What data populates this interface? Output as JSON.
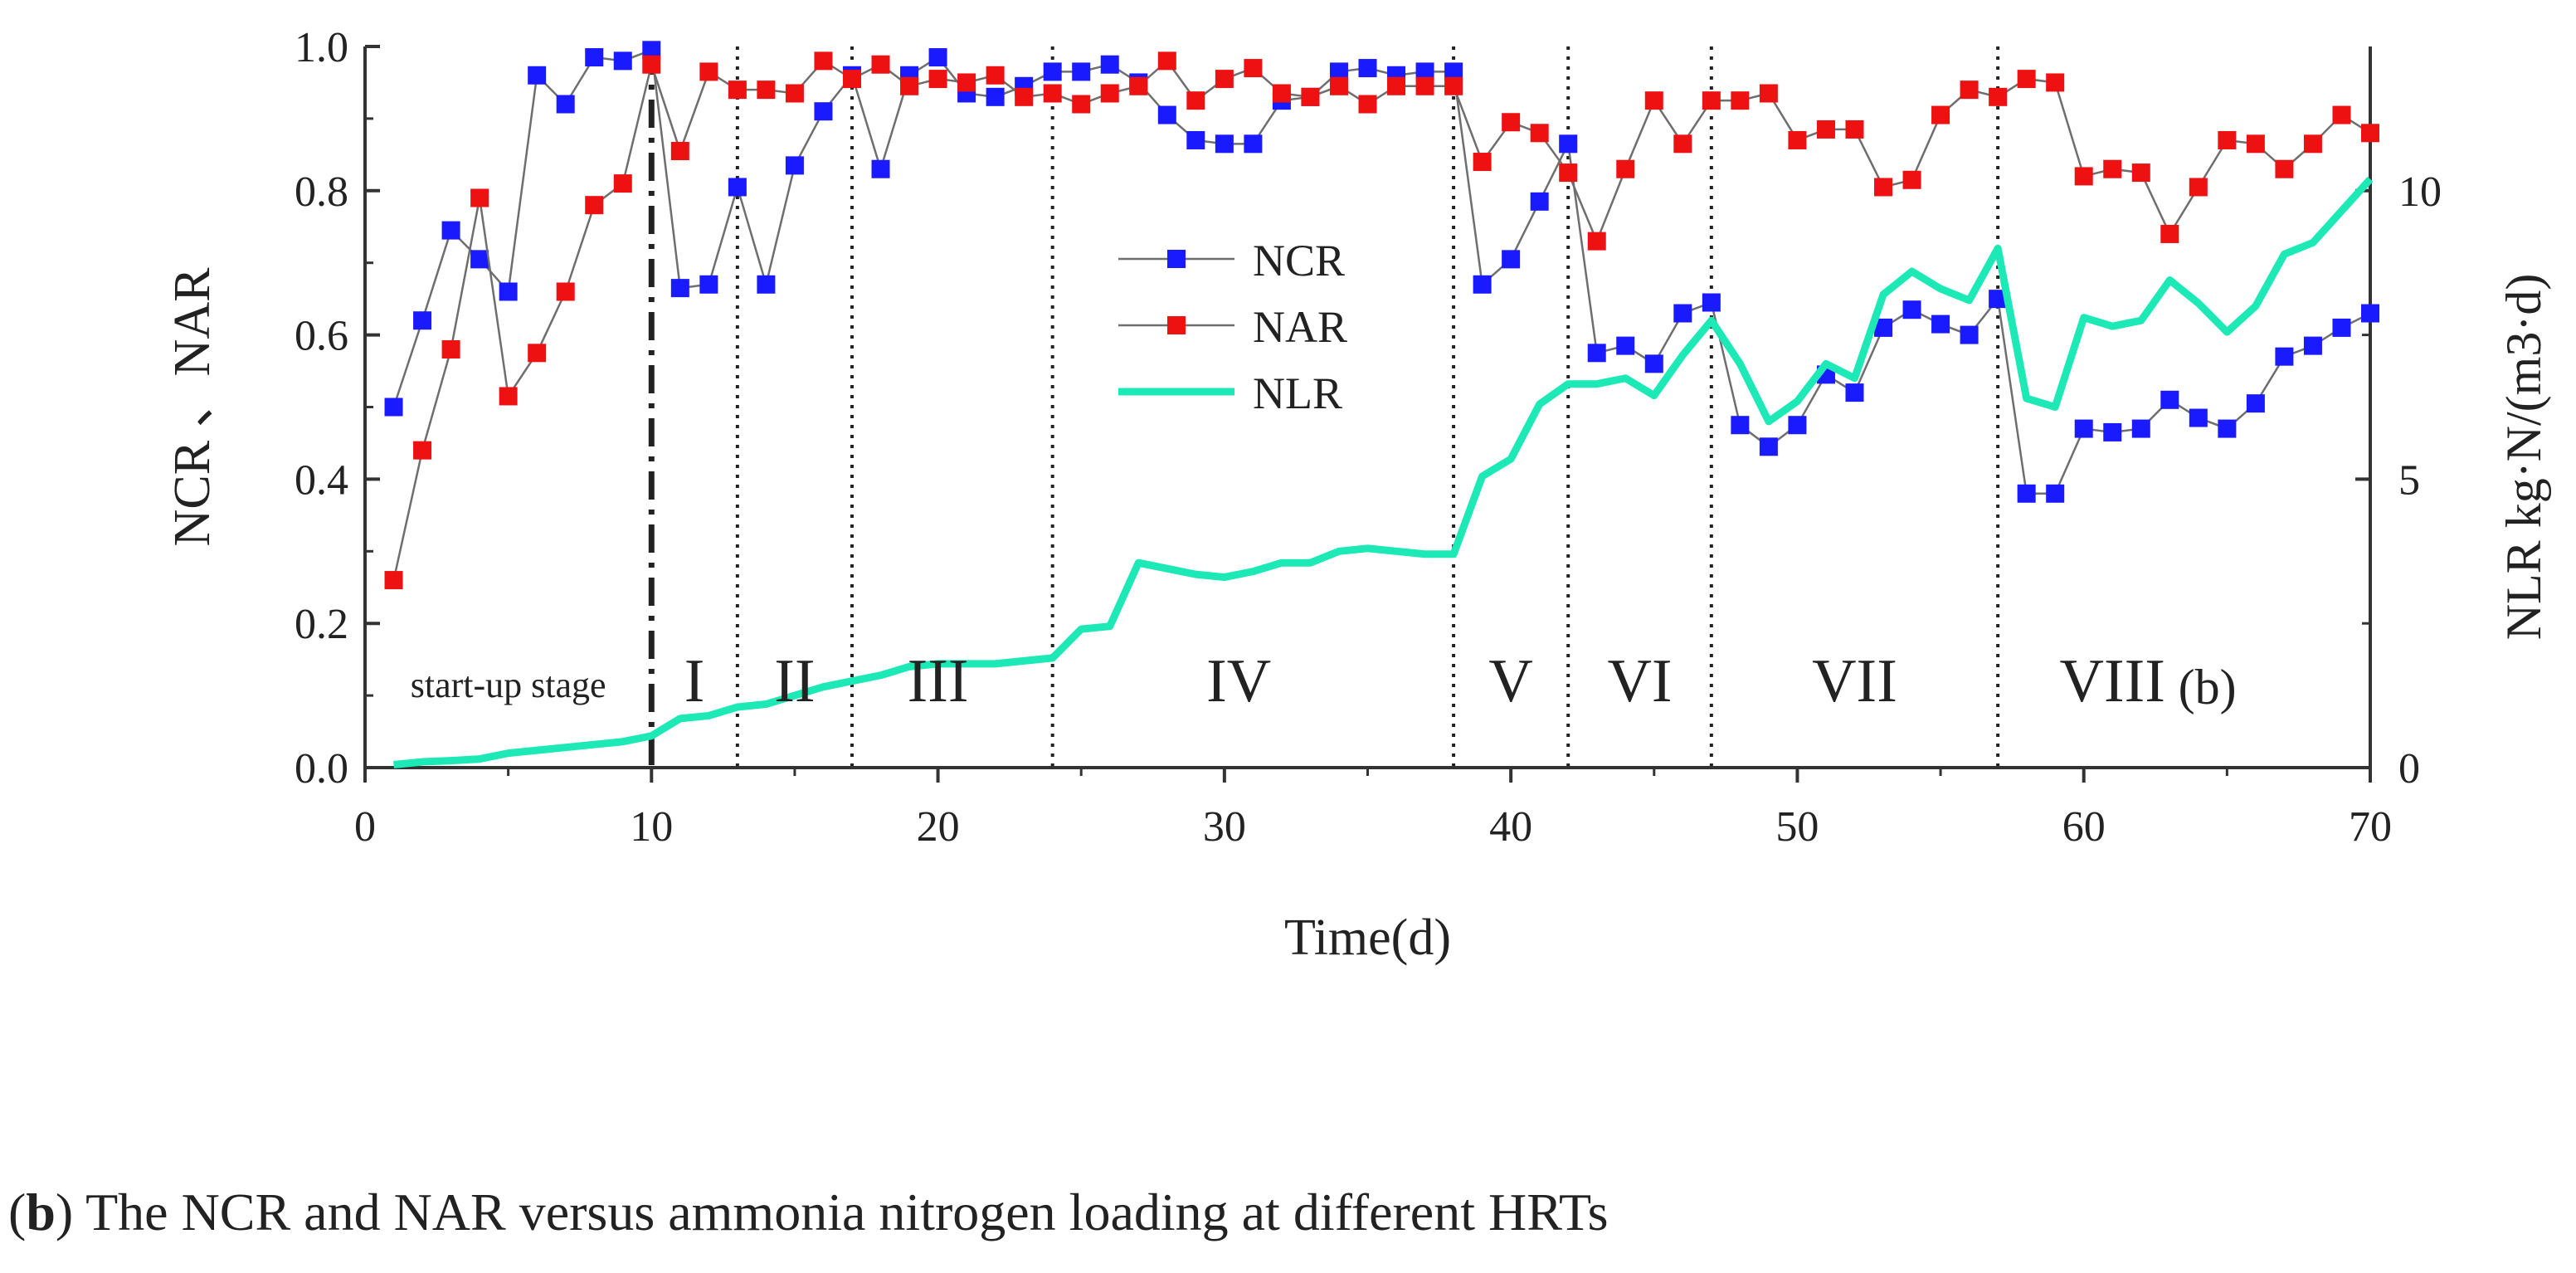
{
  "chart_data": {
    "type": "line",
    "xlabel": "Time(d)",
    "ylabel": "NCR 、NAR",
    "y2label": "NLR  kg·N/(m3·d)",
    "xlim": [
      0,
      70
    ],
    "ylim": [
      0,
      1
    ],
    "y2lim": [
      0,
      12.5
    ],
    "x_ticks": [
      0,
      10,
      20,
      30,
      40,
      50,
      60,
      70
    ],
    "y_ticks": [
      0.0,
      0.2,
      0.4,
      0.6,
      0.8,
      1.0
    ],
    "y_tick_labels": [
      "0.0",
      "0.2",
      "0.4",
      "0.6",
      "0.8",
      "1.0"
    ],
    "y2_ticks": [
      0,
      5,
      10
    ],
    "y2_minor_ticks": [
      2.5,
      7.5
    ],
    "legend": "center",
    "panel_label": "(b)",
    "startup_divider": 10,
    "stage_dividers": [
      13,
      17,
      24,
      38,
      42,
      47,
      57,
      70
    ],
    "stages": [
      {
        "label": "start-up stage",
        "x": 5
      },
      {
        "label": "I",
        "x": 11.5
      },
      {
        "label": "II",
        "x": 15
      },
      {
        "label": "III",
        "x": 20
      },
      {
        "label": "IV",
        "x": 30.5
      },
      {
        "label": "V",
        "x": 40
      },
      {
        "label": "VI",
        "x": 44.5
      },
      {
        "label": "VII",
        "x": 52
      },
      {
        "label": "VIII",
        "x": 61
      }
    ],
    "series": [
      {
        "name": "NCR",
        "axis": "left",
        "color": "#1a1aff",
        "marker": "square",
        "x": [
          1,
          2,
          3,
          4,
          5,
          6,
          7,
          8,
          9,
          10,
          11,
          12,
          13,
          14,
          15,
          16,
          17,
          18,
          19,
          20,
          21,
          22,
          23,
          24,
          25,
          26,
          27,
          28,
          29,
          30,
          31,
          32,
          33,
          34,
          35,
          36,
          37,
          38,
          39,
          40,
          41,
          42,
          43,
          44,
          45,
          46,
          47,
          48,
          49,
          50,
          51,
          52,
          53,
          54,
          55,
          56,
          57,
          58,
          59,
          60,
          61,
          62,
          63,
          64,
          65,
          66,
          67,
          68,
          69,
          70
        ],
        "values": [
          0.5,
          0.62,
          0.745,
          0.705,
          0.66,
          0.96,
          0.92,
          0.985,
          0.98,
          0.995,
          0.665,
          0.67,
          0.805,
          0.67,
          0.835,
          0.91,
          0.96,
          0.83,
          0.96,
          0.985,
          0.935,
          0.93,
          0.945,
          0.965,
          0.965,
          0.975,
          0.95,
          0.905,
          0.87,
          0.865,
          0.865,
          0.925,
          0.93,
          0.965,
          0.97,
          0.96,
          0.965,
          0.965,
          0.67,
          0.705,
          0.785,
          0.865,
          0.575,
          0.585,
          0.56,
          0.63,
          0.645,
          0.475,
          0.445,
          0.475,
          0.545,
          0.52,
          0.61,
          0.635,
          0.615,
          0.6,
          0.65,
          0.38,
          0.38,
          0.47,
          0.465,
          0.47,
          0.51,
          0.485,
          0.47,
          0.505,
          0.57,
          0.585,
          0.61,
          0.63
        ]
      },
      {
        "name": "NAR",
        "axis": "left",
        "color": "#ee1111",
        "marker": "square",
        "x": [
          1,
          2,
          3,
          4,
          5,
          6,
          7,
          8,
          9,
          10,
          11,
          12,
          13,
          14,
          15,
          16,
          17,
          18,
          19,
          20,
          21,
          22,
          23,
          24,
          25,
          26,
          27,
          28,
          29,
          30,
          31,
          32,
          33,
          34,
          35,
          36,
          37,
          38,
          39,
          40,
          41,
          42,
          43,
          44,
          45,
          46,
          47,
          48,
          49,
          50,
          51,
          52,
          53,
          54,
          55,
          56,
          57,
          58,
          59,
          60,
          61,
          62,
          63,
          64,
          65,
          66,
          67,
          68,
          69,
          70
        ],
        "values": [
          0.26,
          0.44,
          0.58,
          0.79,
          0.515,
          0.575,
          0.66,
          0.78,
          0.81,
          0.975,
          0.855,
          0.965,
          0.94,
          0.94,
          0.935,
          0.98,
          0.955,
          0.975,
          0.945,
          0.955,
          0.95,
          0.96,
          0.93,
          0.935,
          0.92,
          0.935,
          0.945,
          0.98,
          0.925,
          0.955,
          0.97,
          0.935,
          0.93,
          0.945,
          0.92,
          0.945,
          0.945,
          0.945,
          0.84,
          0.895,
          0.88,
          0.825,
          0.73,
          0.83,
          0.925,
          0.865,
          0.925,
          0.925,
          0.935,
          0.87,
          0.885,
          0.885,
          0.805,
          0.815,
          0.905,
          0.94,
          0.93,
          0.955,
          0.95,
          0.82,
          0.83,
          0.825,
          0.74,
          0.805,
          0.87,
          0.865,
          0.83,
          0.865,
          0.905,
          0.88
        ]
      },
      {
        "name": "NLR",
        "axis": "right",
        "color": "#1de9b6",
        "marker": "none",
        "x": [
          1,
          2,
          3,
          4,
          5,
          6,
          7,
          8,
          9,
          10,
          11,
          12,
          13,
          14,
          15,
          16,
          17,
          18,
          19,
          20,
          21,
          22,
          23,
          24,
          25,
          26,
          27,
          28,
          29,
          30,
          31,
          32,
          33,
          34,
          35,
          36,
          37,
          38,
          39,
          40,
          41,
          42,
          43,
          44,
          45,
          46,
          47,
          48,
          49,
          50,
          51,
          52,
          53,
          54,
          55,
          56,
          57,
          58,
          59,
          60,
          61,
          62,
          63,
          64,
          65,
          66,
          67,
          68,
          69,
          70
        ],
        "values": [
          0.05,
          0.1,
          0.12,
          0.15,
          0.25,
          0.3,
          0.35,
          0.4,
          0.45,
          0.55,
          0.85,
          0.9,
          1.05,
          1.1,
          1.25,
          1.4,
          1.5,
          1.6,
          1.75,
          1.8,
          1.8,
          1.8,
          1.85,
          1.9,
          2.4,
          2.45,
          3.55,
          3.45,
          3.35,
          3.3,
          3.4,
          3.55,
          3.55,
          3.75,
          3.8,
          3.75,
          3.7,
          3.7,
          5.05,
          5.35,
          6.3,
          6.65,
          6.65,
          6.75,
          6.45,
          7.15,
          7.75,
          7.0,
          6.0,
          6.35,
          7.0,
          6.75,
          8.2,
          8.6,
          8.3,
          8.1,
          9.0,
          6.4,
          6.25,
          7.8,
          7.65,
          7.75,
          8.45,
          8.05,
          7.55,
          8.0,
          8.9,
          9.1,
          9.65,
          10.2
        ]
      }
    ]
  },
  "caption": {
    "label": "b",
    "text": " The NCR and NAR versus ammonia nitrogen loading at different HRTs"
  }
}
